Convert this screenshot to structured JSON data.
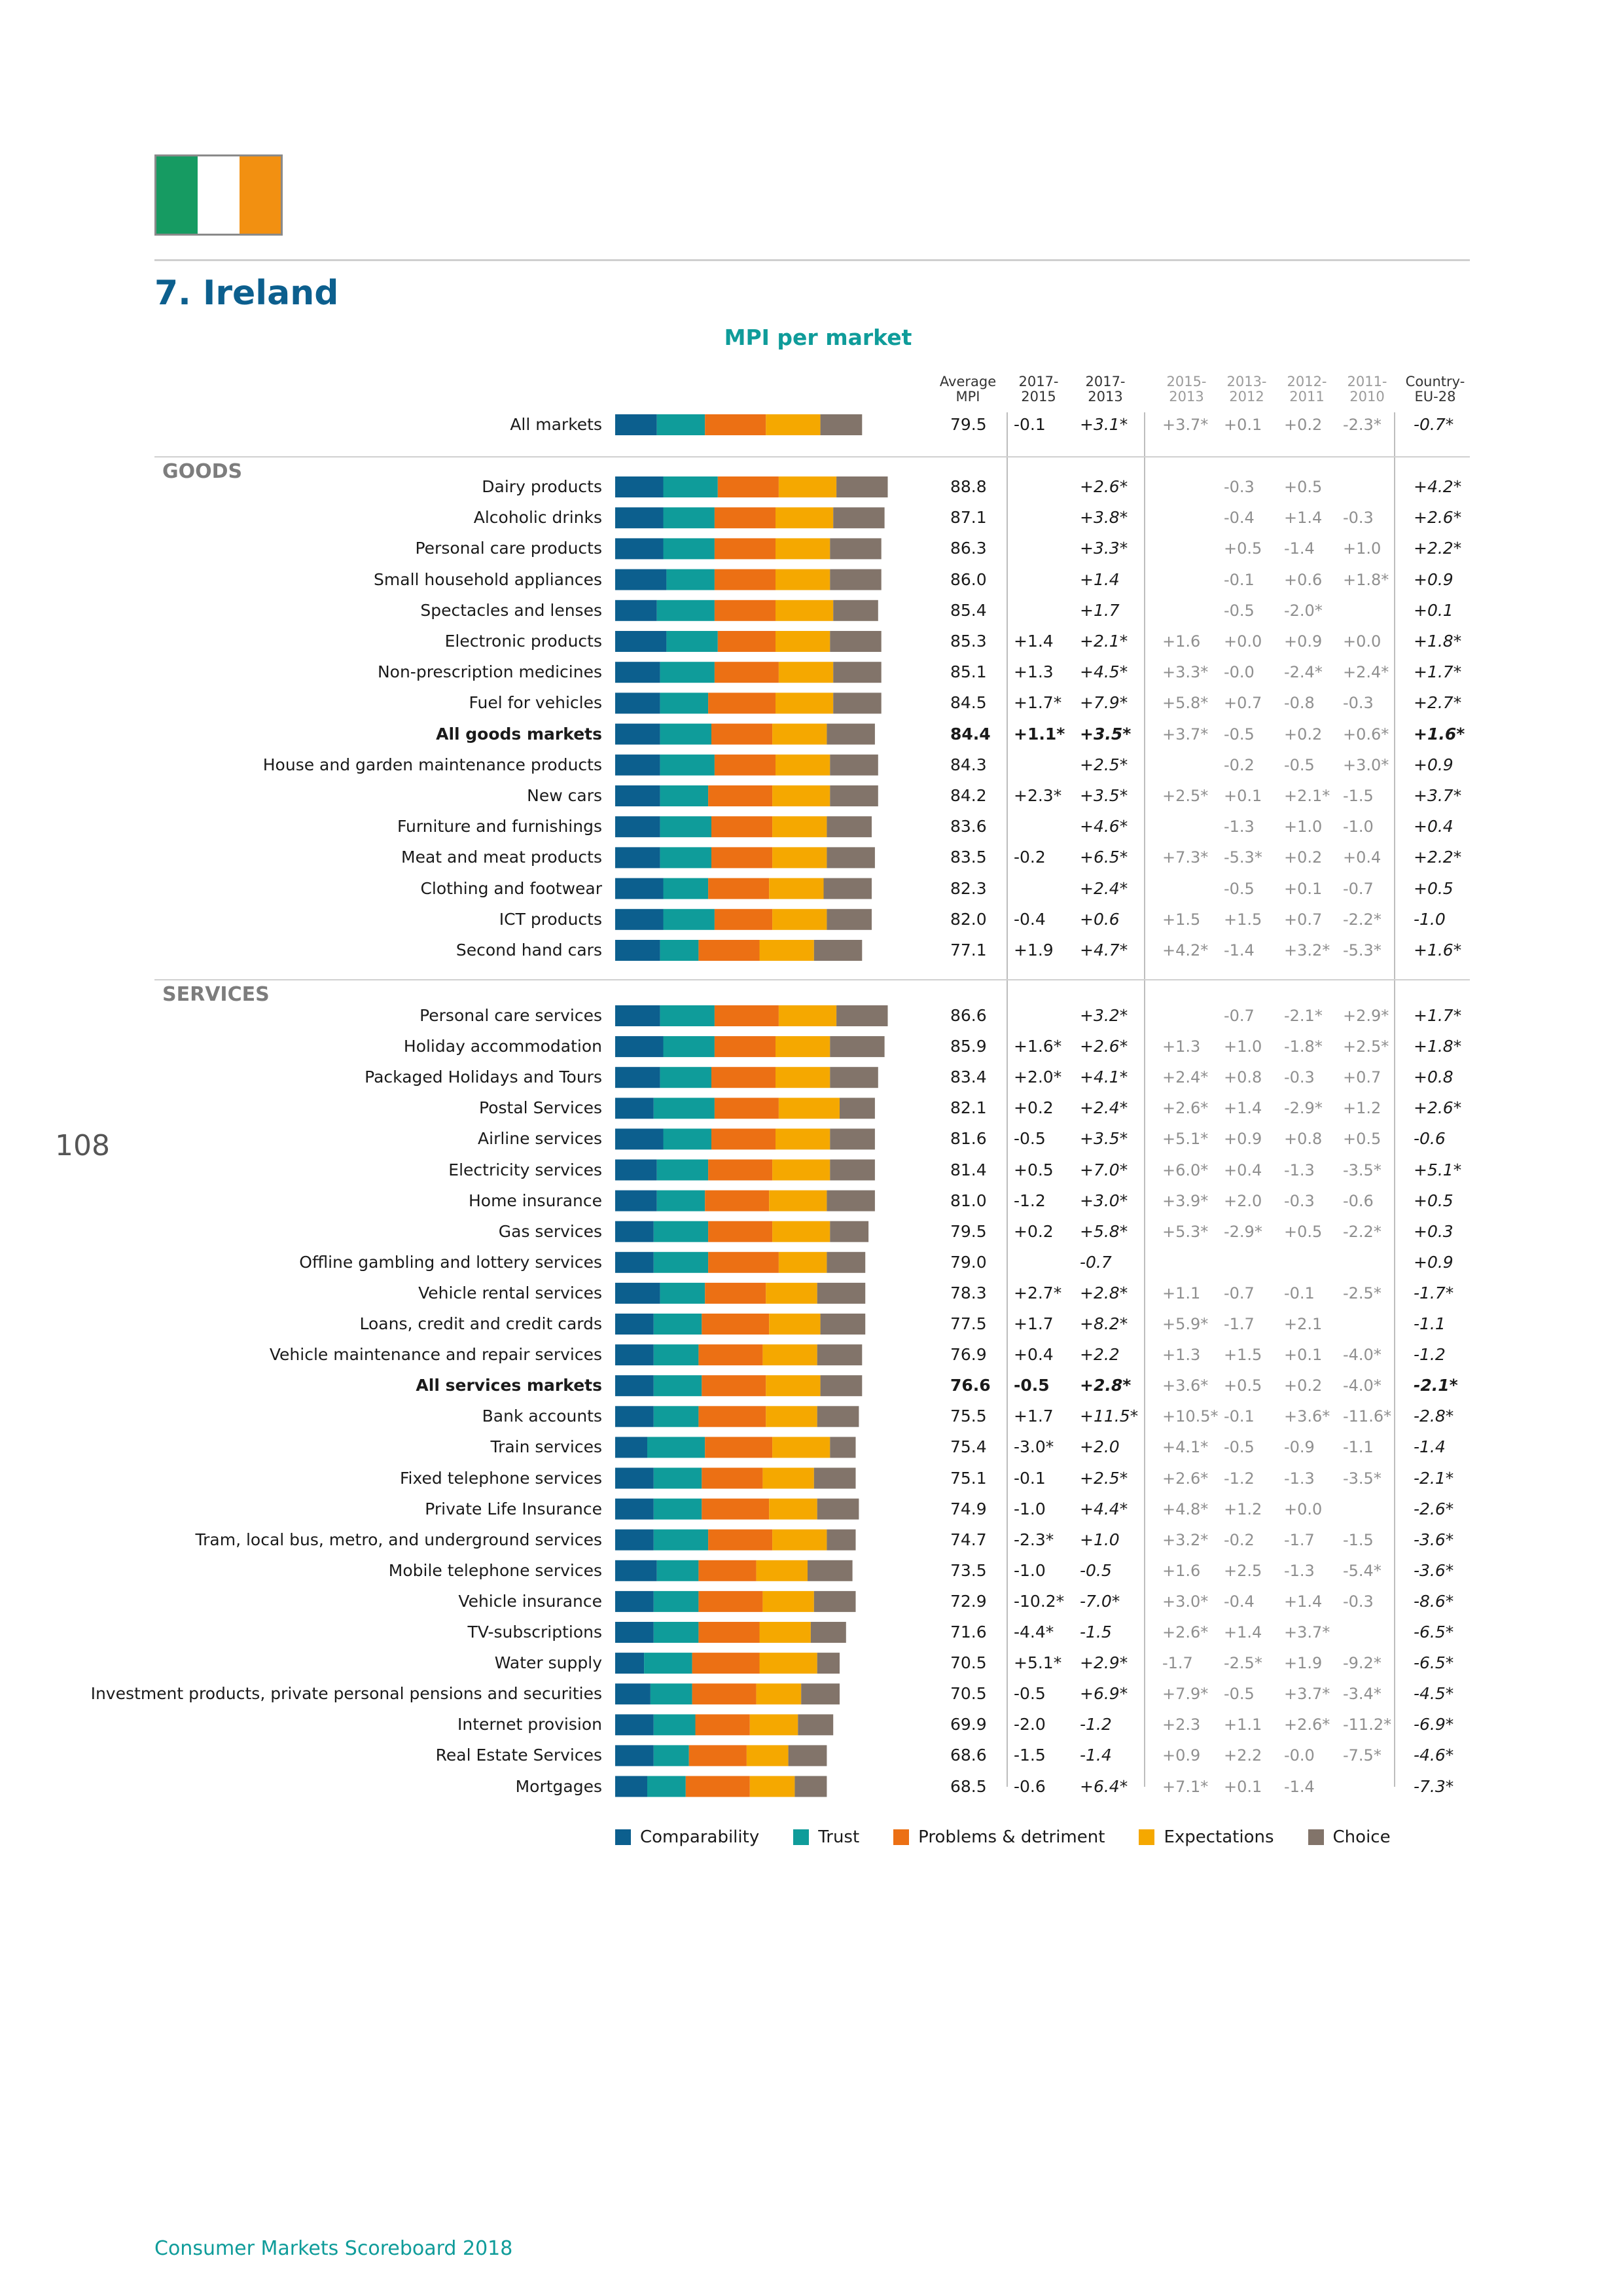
{
  "page_title": "7. Ireland",
  "page_number": "108",
  "footer": "Consumer Markets Scoreboard 2018",
  "flag_colors": [
    "#169b62",
    "#ffffff",
    "#f29011"
  ],
  "headers": {
    "avg": [
      "Average",
      "MPI"
    ],
    "a": [
      "2017-",
      "2015"
    ],
    "b": [
      "2017-",
      "2013"
    ],
    "c": [
      "2015-",
      "2013"
    ],
    "d": [
      "2013-",
      "2012"
    ],
    "e": [
      "2012-",
      "2011"
    ],
    "f": [
      "2011-",
      "2010"
    ],
    "eu": [
      "Country-",
      "EU-28"
    ]
  },
  "sections": {
    "goods": "GOODS",
    "services": "SERVICES"
  },
  "chart_data": {
    "type": "bar",
    "stacked": true,
    "orientation": "horizontal",
    "title": "MPI per market",
    "series_names": [
      "Comparability",
      "Trust",
      "Problems & detriment",
      "Expectations",
      "Choice"
    ],
    "colors": [
      "#0c5f8e",
      "#0f9c9a",
      "#ec7014",
      "#f5a800",
      "#82746a"
    ],
    "rows": [
      {
        "label": "All markets",
        "group": "all",
        "bold": false,
        "segments": [
          13,
          15,
          19,
          17,
          13
        ],
        "avg": "79.5",
        "a": "-0.1",
        "b": "+3.1*",
        "c": "+3.7*",
        "d": "+0.1",
        "e": "+0.2",
        "f": "-2.3*",
        "eu": "-0.7*"
      },
      {
        "label": "Dairy products",
        "group": "goods",
        "bold": false,
        "segments": [
          15,
          17,
          19,
          18,
          16
        ],
        "avg": "88.8",
        "a": "",
        "b": "+2.6*",
        "c": "",
        "d": "-0.3",
        "e": "+0.5",
        "f": "",
        "eu": "+4.2*"
      },
      {
        "label": "Alcoholic drinks",
        "group": "goods",
        "bold": false,
        "segments": [
          15,
          16,
          19,
          18,
          16
        ],
        "avg": "87.1",
        "a": "",
        "b": "+3.8*",
        "c": "",
        "d": "-0.4",
        "e": "+1.4",
        "f": "-0.3",
        "eu": "+2.6*"
      },
      {
        "label": "Personal care products",
        "group": "goods",
        "bold": false,
        "segments": [
          15,
          16,
          19,
          17,
          16
        ],
        "avg": "86.3",
        "a": "",
        "b": "+3.3*",
        "c": "",
        "d": "+0.5",
        "e": "-1.4",
        "f": "+1.0",
        "eu": "+2.2*"
      },
      {
        "label": "Small household appliances",
        "group": "goods",
        "bold": false,
        "segments": [
          16,
          15,
          19,
          17,
          16
        ],
        "avg": "86.0",
        "a": "",
        "b": "+1.4",
        "c": "",
        "d": "-0.1",
        "e": "+0.6",
        "f": "+1.8*",
        "eu": "+0.9"
      },
      {
        "label": "Spectacles and lenses",
        "group": "goods",
        "bold": false,
        "segments": [
          13,
          18,
          19,
          18,
          14
        ],
        "avg": "85.4",
        "a": "",
        "b": "+1.7",
        "c": "",
        "d": "-0.5",
        "e": "-2.0*",
        "f": "",
        "eu": "+0.1"
      },
      {
        "label": "Electronic products",
        "group": "goods",
        "bold": false,
        "segments": [
          16,
          16,
          18,
          17,
          16
        ],
        "avg": "85.3",
        "a": "+1.4",
        "b": "+2.1*",
        "c": "+1.6",
        "d": "+0.0",
        "e": "+0.9",
        "f": "+0.0",
        "eu": "+1.8*"
      },
      {
        "label": "Non-prescription medicines",
        "group": "goods",
        "bold": false,
        "segments": [
          14,
          17,
          20,
          17,
          15
        ],
        "avg": "85.1",
        "a": "+1.3",
        "b": "+4.5*",
        "c": "+3.3*",
        "d": "-0.0",
        "e": "-2.4*",
        "f": "+2.4*",
        "eu": "+1.7*"
      },
      {
        "label": "Fuel for vehicles",
        "group": "goods",
        "bold": false,
        "segments": [
          14,
          15,
          21,
          18,
          15
        ],
        "avg": "84.5",
        "a": "+1.7*",
        "b": "+7.9*",
        "c": "+5.8*",
        "d": "+0.7",
        "e": "-0.8",
        "f": "-0.3",
        "eu": "+2.7*"
      },
      {
        "label": "All goods markets",
        "group": "goods",
        "bold": true,
        "segments": [
          14,
          16,
          19,
          17,
          15
        ],
        "avg": "84.4",
        "a": "+1.1*",
        "b": "+3.5*",
        "c": "+3.7*",
        "d": "-0.5",
        "e": "+0.2",
        "f": "+0.6*",
        "eu": "+1.6*"
      },
      {
        "label": "House and garden maintenance products",
        "group": "goods",
        "bold": false,
        "segments": [
          14,
          17,
          19,
          17,
          15
        ],
        "avg": "84.3",
        "a": "",
        "b": "+2.5*",
        "c": "",
        "d": "-0.2",
        "e": "-0.5",
        "f": "+3.0*",
        "eu": "+0.9"
      },
      {
        "label": "New cars",
        "group": "goods",
        "bold": false,
        "segments": [
          14,
          15,
          20,
          18,
          15
        ],
        "avg": "84.2",
        "a": "+2.3*",
        "b": "+3.5*",
        "c": "+2.5*",
        "d": "+0.1",
        "e": "+2.1*",
        "f": "-1.5",
        "eu": "+3.7*"
      },
      {
        "label": "Furniture and furnishings",
        "group": "goods",
        "bold": false,
        "segments": [
          14,
          16,
          19,
          17,
          14
        ],
        "avg": "83.6",
        "a": "",
        "b": "+4.6*",
        "c": "",
        "d": "-1.3",
        "e": "+1.0",
        "f": "-1.0",
        "eu": "+0.4"
      },
      {
        "label": "Meat and meat products",
        "group": "goods",
        "bold": false,
        "segments": [
          14,
          16,
          19,
          17,
          15
        ],
        "avg": "83.5",
        "a": "-0.2",
        "b": "+6.5*",
        "c": "+7.3*",
        "d": "-5.3*",
        "e": "+0.2",
        "f": "+0.4",
        "eu": "+2.2*"
      },
      {
        "label": "Clothing and footwear",
        "group": "goods",
        "bold": false,
        "segments": [
          15,
          14,
          19,
          17,
          15
        ],
        "avg": "82.3",
        "a": "",
        "b": "+2.4*",
        "c": "",
        "d": "-0.5",
        "e": "+0.1",
        "f": "-0.7",
        "eu": "+0.5"
      },
      {
        "label": "ICT products",
        "group": "goods",
        "bold": false,
        "segments": [
          15,
          16,
          18,
          17,
          14
        ],
        "avg": "82.0",
        "a": "-0.4",
        "b": "+0.6",
        "c": "+1.5",
        "d": "+1.5",
        "e": "+0.7",
        "f": "-2.2*",
        "eu": "-1.0"
      },
      {
        "label": "Second hand cars",
        "group": "goods",
        "bold": false,
        "segments": [
          14,
          12,
          19,
          17,
          15
        ],
        "avg": "77.1",
        "a": "+1.9",
        "b": "+4.7*",
        "c": "+4.2*",
        "d": "-1.4",
        "e": "+3.2*",
        "f": "-5.3*",
        "eu": "+1.6*"
      },
      {
        "label": "Personal care services",
        "group": "services",
        "bold": false,
        "segments": [
          14,
          17,
          20,
          18,
          16
        ],
        "avg": "86.6",
        "a": "",
        "b": "+3.2*",
        "c": "",
        "d": "-0.7",
        "e": "-2.1*",
        "f": "+2.9*",
        "eu": "+1.7*"
      },
      {
        "label": "Holiday accommodation",
        "group": "services",
        "bold": false,
        "segments": [
          15,
          16,
          19,
          17,
          17
        ],
        "avg": "85.9",
        "a": "+1.6*",
        "b": "+2.6*",
        "c": "+1.3",
        "d": "+1.0",
        "e": "-1.8*",
        "f": "+2.5*",
        "eu": "+1.8*"
      },
      {
        "label": "Packaged Holidays and Tours",
        "group": "services",
        "bold": false,
        "segments": [
          14,
          16,
          20,
          17,
          15
        ],
        "avg": "83.4",
        "a": "+2.0*",
        "b": "+4.1*",
        "c": "+2.4*",
        "d": "+0.8",
        "e": "-0.3",
        "f": "+0.7",
        "eu": "+0.8"
      },
      {
        "label": "Postal Services",
        "group": "services",
        "bold": false,
        "segments": [
          12,
          19,
          20,
          19,
          11
        ],
        "avg": "82.1",
        "a": "+0.2",
        "b": "+2.4*",
        "c": "+2.6*",
        "d": "+1.4",
        "e": "-2.9*",
        "f": "+1.2",
        "eu": "+2.6*"
      },
      {
        "label": "Airline services",
        "group": "services",
        "bold": false,
        "segments": [
          15,
          15,
          20,
          17,
          14
        ],
        "avg": "81.6",
        "a": "-0.5",
        "b": "+3.5*",
        "c": "+5.1*",
        "d": "+0.9",
        "e": "+0.8",
        "f": "+0.5",
        "eu": "-0.6"
      },
      {
        "label": "Electricity services",
        "group": "services",
        "bold": false,
        "segments": [
          13,
          16,
          20,
          18,
          14
        ],
        "avg": "81.4",
        "a": "+0.5",
        "b": "+7.0*",
        "c": "+6.0*",
        "d": "+0.4",
        "e": "-1.3",
        "f": "-3.5*",
        "eu": "+5.1*"
      },
      {
        "label": "Home insurance",
        "group": "services",
        "bold": false,
        "segments": [
          13,
          15,
          20,
          18,
          15
        ],
        "avg": "81.0",
        "a": "-1.2",
        "b": "+3.0*",
        "c": "+3.9*",
        "d": "+2.0",
        "e": "-0.3",
        "f": "-0.6",
        "eu": "+0.5"
      },
      {
        "label": "Gas services",
        "group": "services",
        "bold": false,
        "segments": [
          12,
          17,
          20,
          18,
          12
        ],
        "avg": "79.5",
        "a": "+0.2",
        "b": "+5.8*",
        "c": "+5.3*",
        "d": "-2.9*",
        "e": "+0.5",
        "f": "-2.2*",
        "eu": "+0.3"
      },
      {
        "label": "Offline gambling and lottery services",
        "group": "services",
        "bold": false,
        "segments": [
          12,
          17,
          22,
          15,
          12
        ],
        "avg": "79.0",
        "a": "",
        "b": "-0.7",
        "c": "",
        "d": "",
        "e": "",
        "f": "",
        "eu": "+0.9"
      },
      {
        "label": "Vehicle rental services",
        "group": "services",
        "bold": false,
        "segments": [
          14,
          14,
          19,
          16,
          15
        ],
        "avg": "78.3",
        "a": "+2.7*",
        "b": "+2.8*",
        "c": "+1.1",
        "d": "-0.7",
        "e": "-0.1",
        "f": "-2.5*",
        "eu": "-1.7*"
      },
      {
        "label": "Loans, credit and credit cards",
        "group": "services",
        "bold": false,
        "segments": [
          12,
          15,
          21,
          16,
          14
        ],
        "avg": "77.5",
        "a": "+1.7",
        "b": "+8.2*",
        "c": "+5.9*",
        "d": "-1.7",
        "e": "+2.1",
        "f": "",
        "eu": "-1.1"
      },
      {
        "label": "Vehicle maintenance and repair services",
        "group": "services",
        "bold": false,
        "segments": [
          12,
          14,
          20,
          17,
          14
        ],
        "avg": "76.9",
        "a": "+0.4",
        "b": "+2.2",
        "c": "+1.3",
        "d": "+1.5",
        "e": "+0.1",
        "f": "-4.0*",
        "eu": "-1.2"
      },
      {
        "label": "All services markets",
        "group": "services",
        "bold": true,
        "segments": [
          12,
          15,
          20,
          17,
          13
        ],
        "avg": "76.6",
        "a": "-0.5",
        "b": "+2.8*",
        "c": "+3.6*",
        "d": "+0.5",
        "e": "+0.2",
        "f": "-4.0*",
        "eu": "-2.1*"
      },
      {
        "label": "Bank accounts",
        "group": "services",
        "bold": false,
        "segments": [
          12,
          14,
          21,
          16,
          13
        ],
        "avg": "75.5",
        "a": "+1.7",
        "b": "+11.5*",
        "c": "+10.5*",
        "d": "-0.1",
        "e": "+3.6*",
        "f": "-11.6*",
        "eu": "-2.8*"
      },
      {
        "label": "Train services",
        "group": "services",
        "bold": false,
        "segments": [
          10,
          18,
          21,
          18,
          8
        ],
        "avg": "75.4",
        "a": "-3.0*",
        "b": "+2.0",
        "c": "+4.1*",
        "d": "-0.5",
        "e": "-0.9",
        "f": "-1.1",
        "eu": "-1.4"
      },
      {
        "label": "Fixed telephone services",
        "group": "services",
        "bold": false,
        "segments": [
          12,
          15,
          19,
          16,
          13
        ],
        "avg": "75.1",
        "a": "-0.1",
        "b": "+2.5*",
        "c": "+2.6*",
        "d": "-1.2",
        "e": "-1.3",
        "f": "-3.5*",
        "eu": "-2.1*"
      },
      {
        "label": "Private Life Insurance",
        "group": "services",
        "bold": false,
        "segments": [
          12,
          15,
          21,
          15,
          13
        ],
        "avg": "74.9",
        "a": "-1.0",
        "b": "+4.4*",
        "c": "+4.8*",
        "d": "+1.2",
        "e": "+0.0",
        "f": "",
        "eu": "-2.6*"
      },
      {
        "label": "Tram, local bus, metro, and underground services",
        "group": "services",
        "bold": false,
        "segments": [
          12,
          17,
          20,
          17,
          9
        ],
        "avg": "74.7",
        "a": "-2.3*",
        "b": "+1.0",
        "c": "+3.2*",
        "d": "-0.2",
        "e": "-1.7",
        "f": "-1.5",
        "eu": "-3.6*"
      },
      {
        "label": "Mobile telephone services",
        "group": "services",
        "bold": false,
        "segments": [
          13,
          13,
          18,
          16,
          14
        ],
        "avg": "73.5",
        "a": "-1.0",
        "b": "-0.5",
        "c": "+1.6",
        "d": "+2.5",
        "e": "-1.3",
        "f": "-5.4*",
        "eu": "-3.6*"
      },
      {
        "label": "Vehicle insurance",
        "group": "services",
        "bold": false,
        "segments": [
          12,
          14,
          20,
          16,
          13
        ],
        "avg": "72.9",
        "a": "-10.2*",
        "b": "-7.0*",
        "c": "+3.0*",
        "d": "-0.4",
        "e": "+1.4",
        "f": "-0.3",
        "eu": "-8.6*"
      },
      {
        "label": "TV-subscriptions",
        "group": "services",
        "bold": false,
        "segments": [
          12,
          14,
          19,
          16,
          11
        ],
        "avg": "71.6",
        "a": "-4.4*",
        "b": "-1.5",
        "c": "+2.6*",
        "d": "+1.4",
        "e": "+3.7*",
        "f": "",
        "eu": "-6.5*"
      },
      {
        "label": "Water supply",
        "group": "services",
        "bold": false,
        "segments": [
          9,
          15,
          21,
          18,
          7
        ],
        "avg": "70.5",
        "a": "+5.1*",
        "b": "+2.9*",
        "c": "-1.7",
        "d": "-2.5*",
        "e": "+1.9",
        "f": "-9.2*",
        "eu": "-6.5*"
      },
      {
        "label": "Investment products, private personal pensions and securities",
        "group": "services",
        "bold": false,
        "segments": [
          11,
          13,
          20,
          14,
          12
        ],
        "avg": "70.5",
        "a": "-0.5",
        "b": "+6.9*",
        "c": "+7.9*",
        "d": "-0.5",
        "e": "+3.7*",
        "f": "-3.4*",
        "eu": "-4.5*"
      },
      {
        "label": "Internet provision",
        "group": "services",
        "bold": false,
        "segments": [
          12,
          13,
          17,
          15,
          11
        ],
        "avg": "69.9",
        "a": "-2.0",
        "b": "-1.2",
        "c": "+2.3",
        "d": "+1.1",
        "e": "+2.6*",
        "f": "-11.2*",
        "eu": "-6.9*"
      },
      {
        "label": "Real Estate Services",
        "group": "services",
        "bold": false,
        "segments": [
          12,
          11,
          18,
          13,
          12
        ],
        "avg": "68.6",
        "a": "-1.5",
        "b": "-1.4",
        "c": "+0.9",
        "d": "+2.2",
        "e": "-0.0",
        "f": "-7.5*",
        "eu": "-4.6*"
      },
      {
        "label": "Mortgages",
        "group": "services",
        "bold": false,
        "segments": [
          10,
          12,
          20,
          14,
          10
        ],
        "avg": "68.5",
        "a": "-0.6",
        "b": "+6.4*",
        "c": "+7.1*",
        "d": "+0.1",
        "e": "-1.4",
        "f": "",
        "eu": "-7.3*"
      }
    ]
  }
}
